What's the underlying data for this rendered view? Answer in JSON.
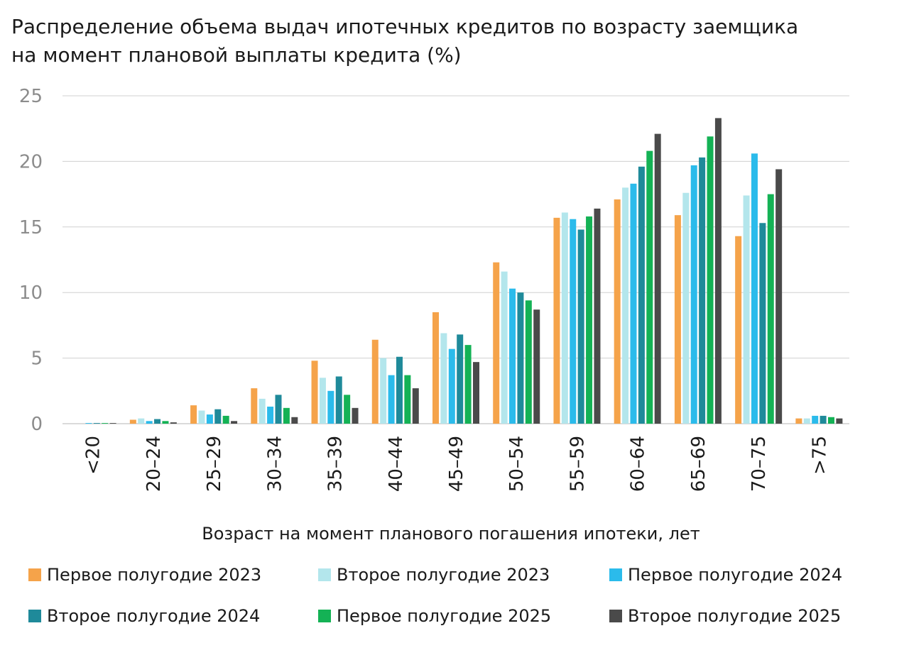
{
  "title": {
    "line1": "Распределение объема выдач ипотечных кредитов по возрасту заемщика",
    "line2": "на момент плановой выплаты кредита (%)"
  },
  "chart_data": {
    "type": "bar",
    "title": "Распределение объема выдач ипотечных кредитов по возрасту заемщика на момент плановой выплаты кредита (%)",
    "xlabel": "Возраст на момент планового погашения ипотеки, лет",
    "ylabel": "",
    "ylim": [
      0,
      25
    ],
    "yticks": [
      0,
      5,
      10,
      15,
      20,
      25
    ],
    "grid": true,
    "legend_position": "bottom",
    "categories": [
      "<20",
      "20–24",
      "25–29",
      "30–34",
      "35–39",
      "40–44",
      "45–49",
      "50–54",
      "55–59",
      "60–64",
      "65–69",
      "70–75",
      ">75"
    ],
    "series": [
      {
        "name": "Первое полугодие 2023",
        "color": "#F5A34A",
        "values": [
          0.0,
          0.3,
          1.4,
          2.7,
          4.8,
          6.4,
          8.5,
          12.3,
          15.7,
          17.1,
          15.9,
          14.3,
          0.4
        ]
      },
      {
        "name": "Второе полугодие 2023",
        "color": "#B3E6EC",
        "values": [
          0.0,
          0.4,
          1.0,
          1.9,
          3.5,
          5.0,
          6.9,
          11.6,
          16.1,
          18.0,
          17.6,
          17.4,
          0.4
        ]
      },
      {
        "name": "Первое полугодие 2024",
        "color": "#2BBBEB",
        "values": [
          0.05,
          0.2,
          0.7,
          1.3,
          2.5,
          3.7,
          5.7,
          10.3,
          15.6,
          18.3,
          19.7,
          20.6,
          0.6
        ]
      },
      {
        "name": "Второе полугодие 2024",
        "color": "#1F8A9A",
        "values": [
          0.05,
          0.35,
          1.1,
          2.2,
          3.6,
          5.1,
          6.8,
          10.0,
          14.8,
          19.6,
          20.3,
          15.3,
          0.6
        ]
      },
      {
        "name": "Первое полугодие 2025",
        "color": "#14B255",
        "values": [
          0.05,
          0.2,
          0.6,
          1.2,
          2.2,
          3.7,
          6.0,
          9.4,
          15.8,
          20.8,
          21.9,
          17.5,
          0.5
        ]
      },
      {
        "name": "Второе полугодие 2025",
        "color": "#4A4A4A",
        "values": [
          0.05,
          0.1,
          0.2,
          0.5,
          1.2,
          2.7,
          4.7,
          8.7,
          16.4,
          22.1,
          23.3,
          19.4,
          0.4
        ]
      }
    ]
  }
}
